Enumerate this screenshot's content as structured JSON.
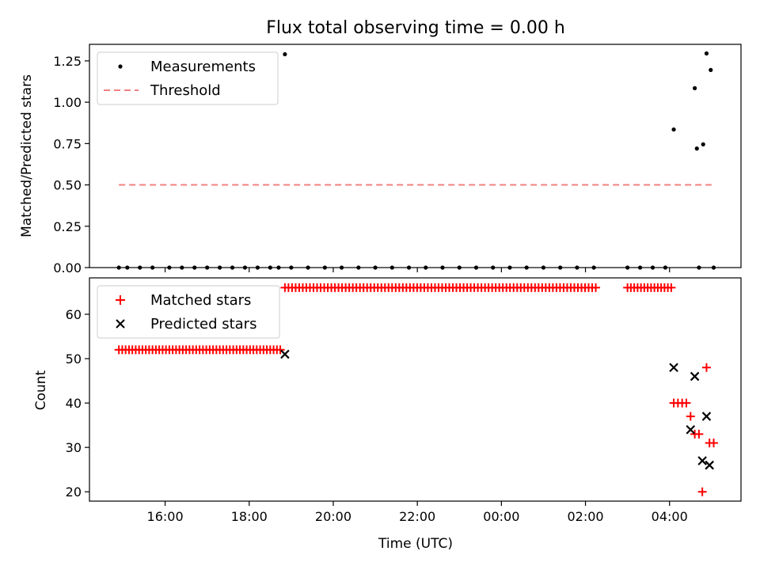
{
  "chart_data": [
    {
      "type": "scatter",
      "title": "Flux total observing time = 0.00 h",
      "xlabel": "",
      "ylabel": "Matched/Predicted stars",
      "x_unit": "hours since 00:00 UTC of first night",
      "xlim": [
        14.2,
        29.7
      ],
      "ylim": [
        0.0,
        1.35
      ],
      "yticks": [
        0.0,
        0.25,
        0.5,
        0.75,
        1.0,
        1.25
      ],
      "ytick_labels": [
        "0.00",
        "0.25",
        "0.50",
        "0.75",
        "1.00",
        "1.25"
      ],
      "legend_position": "top-left",
      "series": [
        {
          "name": "Measurements",
          "marker": "dot",
          "color": "#000000",
          "points": [
            [
              18.85,
              1.29
            ],
            [
              28.1,
              0.835
            ],
            [
              28.6,
              1.085
            ],
            [
              28.65,
              0.72
            ],
            [
              28.8,
              0.745
            ],
            [
              28.88,
              1.295
            ],
            [
              28.98,
              1.195
            ],
            [
              14.9,
              0.0
            ],
            [
              15.1,
              0.0
            ],
            [
              15.4,
              0.0
            ],
            [
              15.7,
              0.0
            ],
            [
              16.1,
              0.0
            ],
            [
              16.4,
              0.0
            ],
            [
              16.7,
              0.0
            ],
            [
              17.0,
              0.0
            ],
            [
              17.3,
              0.0
            ],
            [
              17.6,
              0.0
            ],
            [
              17.9,
              0.0
            ],
            [
              18.2,
              0.0
            ],
            [
              18.5,
              0.0
            ],
            [
              18.7,
              0.0
            ],
            [
              19.0,
              0.0
            ],
            [
              19.4,
              0.0
            ],
            [
              19.8,
              0.0
            ],
            [
              20.2,
              0.0
            ],
            [
              20.6,
              0.0
            ],
            [
              21.0,
              0.0
            ],
            [
              21.4,
              0.0
            ],
            [
              21.8,
              0.0
            ],
            [
              22.2,
              0.0
            ],
            [
              22.6,
              0.0
            ],
            [
              23.0,
              0.0
            ],
            [
              23.4,
              0.0
            ],
            [
              23.8,
              0.0
            ],
            [
              24.2,
              0.0
            ],
            [
              24.6,
              0.0
            ],
            [
              25.0,
              0.0
            ],
            [
              25.4,
              0.0
            ],
            [
              25.8,
              0.0
            ],
            [
              26.2,
              0.0
            ],
            [
              27.0,
              0.0
            ],
            [
              27.3,
              0.0
            ],
            [
              27.6,
              0.0
            ],
            [
              27.9,
              0.0
            ],
            [
              28.7,
              0.0
            ],
            [
              29.05,
              0.0
            ]
          ]
        },
        {
          "name": "Threshold",
          "line_style": "dashed",
          "color": "#f08080",
          "x": [
            14.9,
            29.0
          ],
          "y": [
            0.5,
            0.5
          ]
        }
      ]
    },
    {
      "type": "scatter",
      "title": "",
      "xlabel": "Time (UTC)",
      "ylabel": "Count",
      "x_unit": "hours since 00:00 UTC of first night",
      "xlim": [
        14.2,
        29.7
      ],
      "ylim": [
        17.9,
        68.2
      ],
      "yticks": [
        20,
        30,
        40,
        50,
        60
      ],
      "ytick_labels": [
        "20",
        "30",
        "40",
        "50",
        "60"
      ],
      "xticks": [
        16,
        18,
        20,
        22,
        24,
        26,
        28
      ],
      "xtick_labels": [
        "16:00",
        "18:00",
        "20:00",
        "22:00",
        "00:00",
        "02:00",
        "04:00"
      ],
      "legend_position": "top-left",
      "series": [
        {
          "name": "Matched stars",
          "marker": "plus",
          "color": "#ff0000",
          "segments": [
            {
              "count": 52,
              "xrange": [
                14.9,
                18.75
              ],
              "step": 0.08
            },
            {
              "count": 66,
              "xrange": [
                18.85,
                26.25
              ],
              "step": 0.085
            },
            {
              "count": 66,
              "xrange": [
                27.0,
                28.1
              ],
              "step": 0.08
            }
          ],
          "points": [
            [
              28.1,
              40
            ],
            [
              28.2,
              40
            ],
            [
              28.3,
              40
            ],
            [
              28.4,
              40
            ],
            [
              28.5,
              37
            ],
            [
              28.6,
              33
            ],
            [
              28.7,
              33
            ],
            [
              28.78,
              20
            ],
            [
              28.88,
              48
            ],
            [
              28.95,
              31
            ],
            [
              29.05,
              31
            ]
          ]
        },
        {
          "name": "Predicted stars",
          "marker": "x",
          "color": "#000000",
          "points": [
            [
              18.85,
              51
            ],
            [
              28.1,
              48
            ],
            [
              28.5,
              34
            ],
            [
              28.6,
              46
            ],
            [
              28.78,
              27
            ],
            [
              28.88,
              37
            ],
            [
              28.95,
              26
            ]
          ]
        }
      ]
    }
  ]
}
